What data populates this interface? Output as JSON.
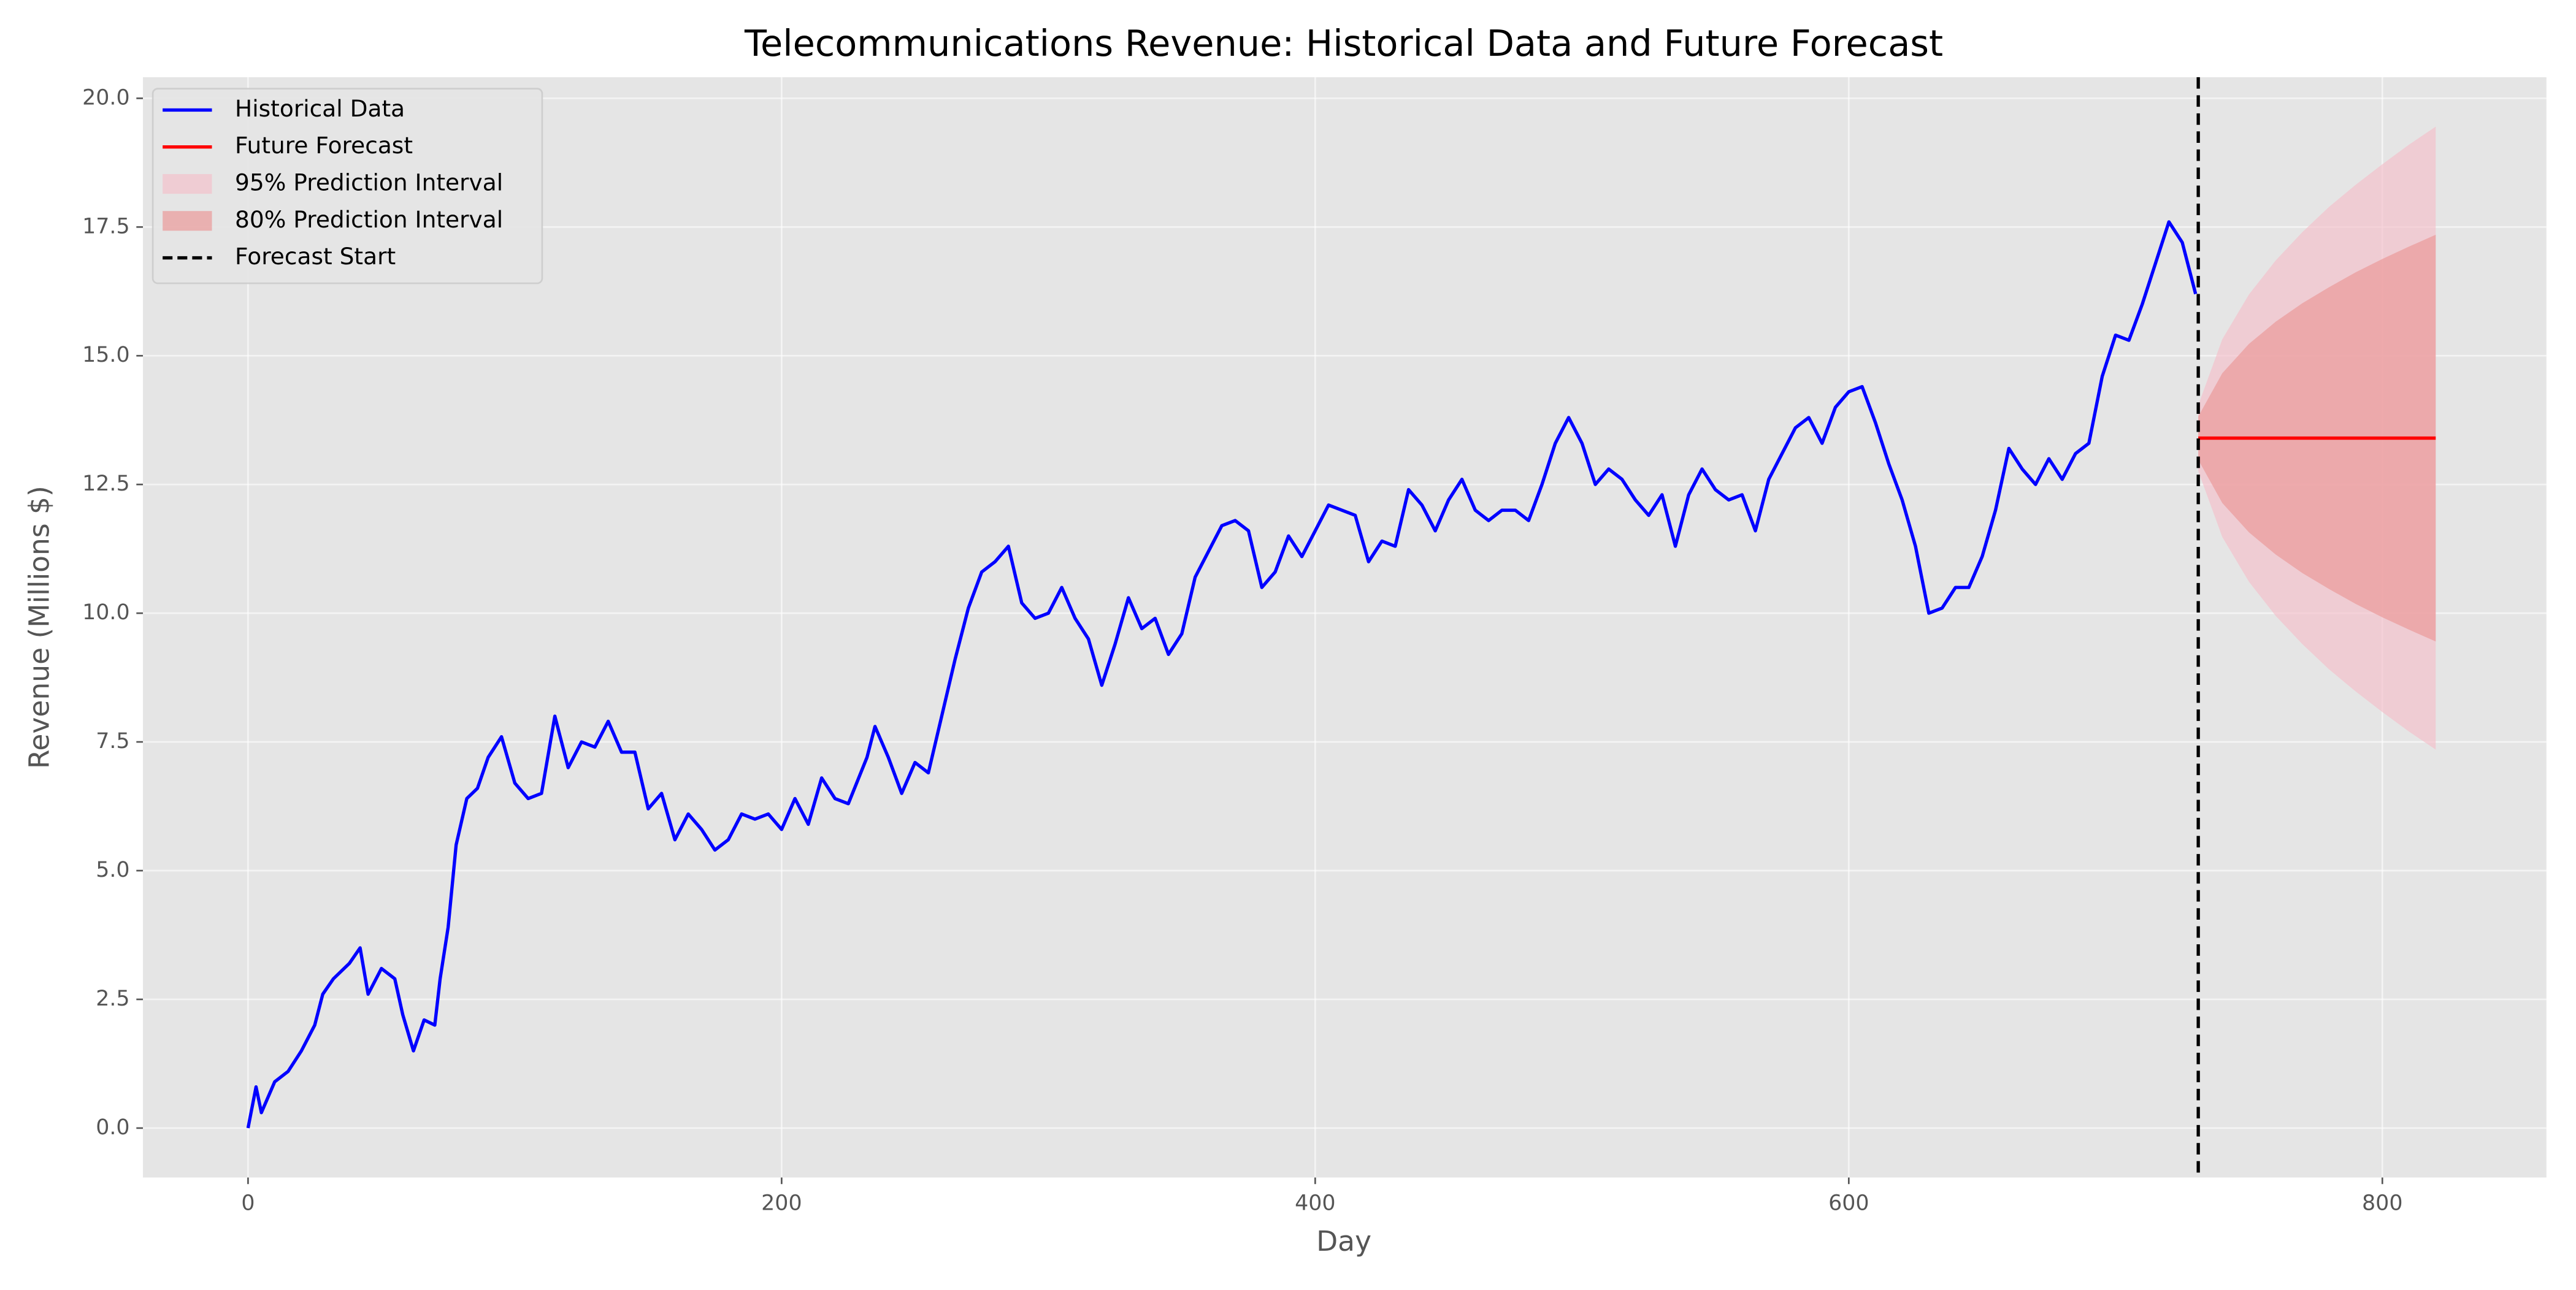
{
  "chart_data": {
    "type": "line",
    "title": "Telecommunications Revenue: Historical Data and Future Forecast",
    "xlabel": "Day",
    "ylabel": "Revenue (Millions $)",
    "xlim": [
      -39.4,
      861.5
    ],
    "ylim": [
      -0.96,
      20.41
    ],
    "xticks": [
      0,
      200,
      400,
      600,
      800
    ],
    "yticks": [
      {
        "value": 0,
        "label": "0.0"
      },
      {
        "value": 2.5,
        "label": "2.5"
      },
      {
        "value": 5,
        "label": "5.0"
      },
      {
        "value": 7.5,
        "label": "7.5"
      },
      {
        "value": 10,
        "label": "10.0"
      },
      {
        "value": 12.5,
        "label": "12.5"
      },
      {
        "value": 15,
        "label": "15.0"
      },
      {
        "value": 17.5,
        "label": "17.5"
      },
      {
        "value": 20,
        "label": "20.0"
      }
    ],
    "grid": true,
    "legend": "upper left",
    "series": [
      {
        "name": "Historical Data",
        "color": "#0000ff",
        "x": [
          0,
          3,
          5,
          10,
          15,
          20,
          25,
          28,
          32,
          38,
          42,
          45,
          50,
          55,
          58,
          62,
          66,
          70,
          72,
          75,
          78,
          82,
          86,
          90,
          95,
          100,
          105,
          110,
          115,
          120,
          125,
          130,
          135,
          140,
          145,
          150,
          155,
          160,
          165,
          170,
          175,
          180,
          185,
          190,
          195,
          200,
          205,
          210,
          215,
          220,
          225,
          232,
          235,
          240,
          245,
          250,
          255,
          260,
          265,
          270,
          275,
          280,
          285,
          290,
          295,
          300,
          305,
          310,
          315,
          320,
          325,
          330,
          335,
          340,
          345,
          350,
          355,
          360,
          365,
          370,
          375,
          380,
          385,
          390,
          395,
          400,
          405,
          410,
          415,
          420,
          425,
          430,
          435,
          440,
          445,
          450,
          455,
          460,
          465,
          470,
          475,
          480,
          485,
          490,
          495,
          500,
          505,
          510,
          515,
          520,
          525,
          530,
          535,
          540,
          545,
          550,
          555,
          560,
          565,
          570,
          575,
          580,
          585,
          590,
          595,
          600,
          605,
          610,
          615,
          620,
          625,
          630,
          635,
          640,
          645,
          650,
          655,
          660,
          665,
          670,
          675,
          680,
          685,
          690,
          695,
          700,
          705,
          710,
          715,
          720,
          725,
          730
        ],
        "values": [
          0,
          0.8,
          0.3,
          0.9,
          1.1,
          1.5,
          2.0,
          2.6,
          2.9,
          3.2,
          3.5,
          2.6,
          3.1,
          2.9,
          2.2,
          1.5,
          2.1,
          2.0,
          2.9,
          3.9,
          5.5,
          6.4,
          6.6,
          7.2,
          7.6,
          6.7,
          6.4,
          6.5,
          8.0,
          7.0,
          7.5,
          7.4,
          7.9,
          7.3,
          7.3,
          6.2,
          6.5,
          5.6,
          6.1,
          5.8,
          5.4,
          5.6,
          6.1,
          6.0,
          6.1,
          5.8,
          6.4,
          5.9,
          6.8,
          6.4,
          6.3,
          7.2,
          7.8,
          7.2,
          6.5,
          7.1,
          6.9,
          8.0,
          9.1,
          10.1,
          10.8,
          11.0,
          11.3,
          10.2,
          9.9,
          10.0,
          10.5,
          9.9,
          9.5,
          8.6,
          9.4,
          10.3,
          9.7,
          9.9,
          9.2,
          9.6,
          10.7,
          11.2,
          11.7,
          11.8,
          11.6,
          10.5,
          10.8,
          11.5,
          11.1,
          11.6,
          12.1,
          12.0,
          11.9,
          11.0,
          11.4,
          11.3,
          12.4,
          12.1,
          11.6,
          12.2,
          12.6,
          12.0,
          11.8,
          12.0,
          12.0,
          11.8,
          12.5,
          13.3,
          13.8,
          13.3,
          12.5,
          12.8,
          12.6,
          12.2,
          11.9,
          12.3,
          11.3,
          12.3,
          12.8,
          12.4,
          12.2,
          12.3,
          11.6,
          12.6,
          13.1,
          13.6,
          13.8,
          13.3,
          14.0,
          14.3,
          14.4,
          13.7,
          12.9,
          12.2,
          11.3,
          10.0,
          10.1,
          10.5,
          10.5,
          11.1,
          12.0,
          13.2,
          12.8,
          12.5,
          13.0,
          12.6,
          13.1,
          13.3,
          14.6,
          15.4,
          15.3,
          16.0,
          16.8,
          17.6,
          17.2,
          16.2
        ]
      },
      {
        "name": "Future Forecast",
        "color": "#ff0000",
        "x": [
          731,
          820
        ],
        "values": [
          13.4,
          13.4
        ]
      }
    ],
    "intervals": [
      {
        "name": "95% Prediction Interval",
        "color": "#f4c2cc",
        "x": [
          731,
          740,
          750,
          760,
          770,
          780,
          790,
          800,
          810,
          820
        ],
        "lower": [
          12.76,
          11.48,
          10.61,
          9.95,
          9.4,
          8.91,
          8.48,
          8.08,
          7.7,
          7.35
        ],
        "upper": [
          14.04,
          15.32,
          16.19,
          16.85,
          17.4,
          17.89,
          18.32,
          18.72,
          19.1,
          19.45
        ]
      },
      {
        "name": "80% Prediction Interval",
        "color": "#eb9a9a",
        "x": [
          731,
          740,
          750,
          760,
          770,
          780,
          790,
          800,
          810,
          820
        ],
        "lower": [
          12.98,
          12.14,
          11.57,
          11.14,
          10.78,
          10.47,
          10.18,
          9.92,
          9.68,
          9.45
        ],
        "upper": [
          13.82,
          14.66,
          15.23,
          15.66,
          16.02,
          16.33,
          16.62,
          16.88,
          17.12,
          17.35
        ]
      }
    ],
    "vline": {
      "name": "Forecast Start",
      "x": 731,
      "color": "#000000"
    }
  }
}
